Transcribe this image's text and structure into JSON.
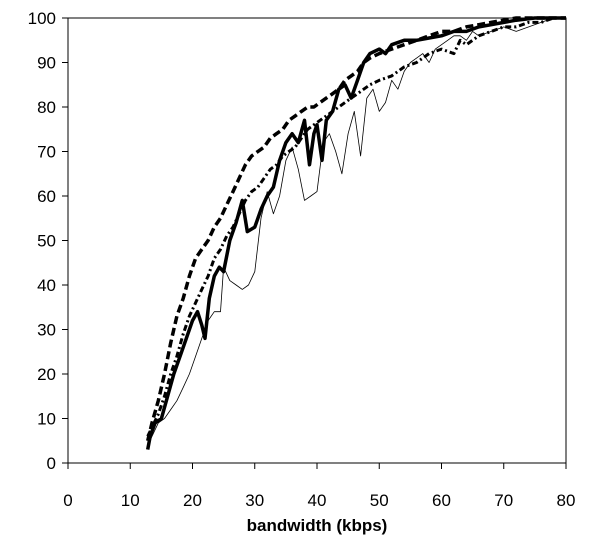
{
  "chart_data": {
    "type": "line",
    "title": "",
    "xlabel": "bandwidth (kbps)",
    "ylabel": "",
    "xlim": [
      0,
      80
    ],
    "ylim": [
      0,
      100
    ],
    "xticks": [
      0,
      10,
      20,
      30,
      40,
      50,
      60,
      70,
      80
    ],
    "yticks": [
      0,
      10,
      20,
      30,
      40,
      50,
      60,
      70,
      80,
      90,
      100
    ],
    "grid": false,
    "legend": "none",
    "series": [
      {
        "style": "thick-solid",
        "points": [
          [
            12.8,
            3
          ],
          [
            13.2,
            6
          ],
          [
            14,
            9
          ],
          [
            15,
            10
          ],
          [
            16,
            15
          ],
          [
            17,
            20
          ],
          [
            18,
            24
          ],
          [
            19,
            28
          ],
          [
            20,
            32
          ],
          [
            20.8,
            34
          ],
          [
            21.5,
            31
          ],
          [
            22,
            28
          ],
          [
            22.7,
            37
          ],
          [
            23.5,
            42
          ],
          [
            24.3,
            44
          ],
          [
            25,
            43
          ],
          [
            26,
            50
          ],
          [
            27,
            54
          ],
          [
            28,
            59
          ],
          [
            28.8,
            52
          ],
          [
            30,
            53
          ],
          [
            31,
            57
          ],
          [
            32,
            60
          ],
          [
            33,
            62
          ],
          [
            34,
            68
          ],
          [
            35,
            72
          ],
          [
            36,
            74
          ],
          [
            37,
            72
          ],
          [
            38,
            77
          ],
          [
            38.8,
            67
          ],
          [
            39.5,
            74
          ],
          [
            40,
            76
          ],
          [
            40.8,
            68
          ],
          [
            41.5,
            77
          ],
          [
            42.5,
            79
          ],
          [
            43.5,
            84
          ],
          [
            44.5,
            85
          ],
          [
            45.5,
            82
          ],
          [
            46.5,
            86
          ],
          [
            47.5,
            90
          ],
          [
            48.5,
            92
          ],
          [
            50,
            93
          ],
          [
            51,
            92
          ],
          [
            52,
            94
          ],
          [
            54,
            95
          ],
          [
            56,
            95
          ],
          [
            58,
            95.5
          ],
          [
            60,
            96
          ],
          [
            62,
            97
          ],
          [
            64,
            97
          ],
          [
            66,
            98
          ],
          [
            68,
            98.5
          ],
          [
            70,
            99
          ],
          [
            72,
            99.5
          ],
          [
            75,
            100
          ],
          [
            80,
            100
          ]
        ]
      },
      {
        "style": "thick-dashed",
        "points": [
          [
            12.8,
            5
          ],
          [
            13.5,
            9
          ],
          [
            14.5,
            14
          ],
          [
            15.5,
            20
          ],
          [
            16.5,
            27
          ],
          [
            17.5,
            33
          ],
          [
            18.5,
            37
          ],
          [
            19.5,
            42
          ],
          [
            20.5,
            46
          ],
          [
            21.5,
            48
          ],
          [
            22.5,
            50
          ],
          [
            23.5,
            53
          ],
          [
            24.5,
            55
          ],
          [
            25.5,
            58
          ],
          [
            26.5,
            61
          ],
          [
            27.5,
            64
          ],
          [
            28.5,
            67
          ],
          [
            29.5,
            69
          ],
          [
            30.5,
            70
          ],
          [
            31.5,
            71
          ],
          [
            32.5,
            73
          ],
          [
            33.5,
            74
          ],
          [
            34.5,
            75
          ],
          [
            35.5,
            77
          ],
          [
            36.5,
            78
          ],
          [
            37.5,
            79
          ],
          [
            38.5,
            80
          ],
          [
            39.5,
            80
          ],
          [
            40.5,
            81
          ],
          [
            41.5,
            82
          ],
          [
            42.5,
            83
          ],
          [
            43.5,
            84
          ],
          [
            44.5,
            86
          ],
          [
            45.5,
            87
          ],
          [
            46.5,
            88
          ],
          [
            47.5,
            90
          ],
          [
            48.5,
            91
          ],
          [
            50,
            92
          ],
          [
            52,
            93
          ],
          [
            54,
            94
          ],
          [
            56,
            95
          ],
          [
            58,
            96
          ],
          [
            60,
            97
          ],
          [
            62,
            97
          ],
          [
            64,
            98
          ],
          [
            66,
            98.5
          ],
          [
            68,
            99
          ],
          [
            70,
            99.5
          ],
          [
            72,
            100
          ],
          [
            80,
            100
          ]
        ]
      },
      {
        "style": "dash-dot",
        "points": [
          [
            12.8,
            6
          ],
          [
            13.5,
            8
          ],
          [
            14.5,
            11
          ],
          [
            15.5,
            15
          ],
          [
            16.5,
            20
          ],
          [
            17.5,
            24
          ],
          [
            18.5,
            29
          ],
          [
            19.5,
            33
          ],
          [
            20.5,
            36
          ],
          [
            21.5,
            39
          ],
          [
            22.5,
            42
          ],
          [
            23.5,
            46
          ],
          [
            24.5,
            48
          ],
          [
            25.5,
            51
          ],
          [
            26.5,
            53
          ],
          [
            27.5,
            56
          ],
          [
            28.5,
            59
          ],
          [
            29.5,
            61
          ],
          [
            30.5,
            62
          ],
          [
            31.5,
            64
          ],
          [
            32.5,
            66
          ],
          [
            33.5,
            67
          ],
          [
            34.5,
            69
          ],
          [
            35.5,
            70
          ],
          [
            36.5,
            71
          ],
          [
            37.5,
            73
          ],
          [
            38.5,
            75
          ],
          [
            39.5,
            76
          ],
          [
            40.5,
            77
          ],
          [
            41.5,
            78
          ],
          [
            42.5,
            79
          ],
          [
            43.5,
            80
          ],
          [
            44.5,
            81
          ],
          [
            45.5,
            82
          ],
          [
            46.5,
            83
          ],
          [
            47.5,
            84
          ],
          [
            48.5,
            85
          ],
          [
            50,
            86
          ],
          [
            52,
            87
          ],
          [
            54,
            89
          ],
          [
            56,
            90
          ],
          [
            58,
            92
          ],
          [
            60,
            93
          ],
          [
            62,
            92
          ],
          [
            63,
            95
          ],
          [
            64,
            94
          ],
          [
            66,
            96
          ],
          [
            68,
            97
          ],
          [
            70,
            98
          ],
          [
            72,
            98
          ],
          [
            74,
            99
          ],
          [
            76,
            99
          ],
          [
            78,
            100
          ],
          [
            80,
            100
          ]
        ]
      },
      {
        "style": "thin-solid",
        "points": [
          [
            12.8,
            4
          ],
          [
            13.5,
            6
          ],
          [
            14.5,
            9
          ],
          [
            15.5,
            10
          ],
          [
            16.5,
            12
          ],
          [
            17.5,
            14
          ],
          [
            18.5,
            17
          ],
          [
            19.5,
            20
          ],
          [
            20.5,
            24
          ],
          [
            21.5,
            28
          ],
          [
            22.5,
            32
          ],
          [
            23.5,
            34
          ],
          [
            24.5,
            34
          ],
          [
            25,
            44
          ],
          [
            26,
            41
          ],
          [
            27,
            40
          ],
          [
            28,
            39
          ],
          [
            29,
            40
          ],
          [
            30,
            43
          ],
          [
            31,
            55
          ],
          [
            32,
            61
          ],
          [
            33,
            56
          ],
          [
            34,
            60
          ],
          [
            35,
            68
          ],
          [
            36,
            71
          ],
          [
            37,
            66
          ],
          [
            38,
            59
          ],
          [
            39,
            60
          ],
          [
            40,
            61
          ],
          [
            41,
            72
          ],
          [
            42,
            74
          ],
          [
            43,
            70
          ],
          [
            44,
            65
          ],
          [
            45,
            74
          ],
          [
            46,
            79
          ],
          [
            47,
            69
          ],
          [
            48,
            82
          ],
          [
            49,
            84
          ],
          [
            50,
            79
          ],
          [
            51,
            81
          ],
          [
            52,
            86
          ],
          [
            53,
            84
          ],
          [
            54,
            88
          ],
          [
            55,
            90
          ],
          [
            56,
            91
          ],
          [
            57,
            92
          ],
          [
            58,
            90
          ],
          [
            59,
            93
          ],
          [
            60,
            94
          ],
          [
            61,
            95
          ],
          [
            62,
            96
          ],
          [
            63,
            96
          ],
          [
            64,
            95
          ],
          [
            65,
            97
          ],
          [
            66,
            96
          ],
          [
            68,
            97
          ],
          [
            70,
            98
          ],
          [
            72,
            97
          ],
          [
            74,
            98
          ],
          [
            76,
            99
          ],
          [
            78,
            100
          ],
          [
            80,
            100
          ]
        ]
      }
    ]
  }
}
